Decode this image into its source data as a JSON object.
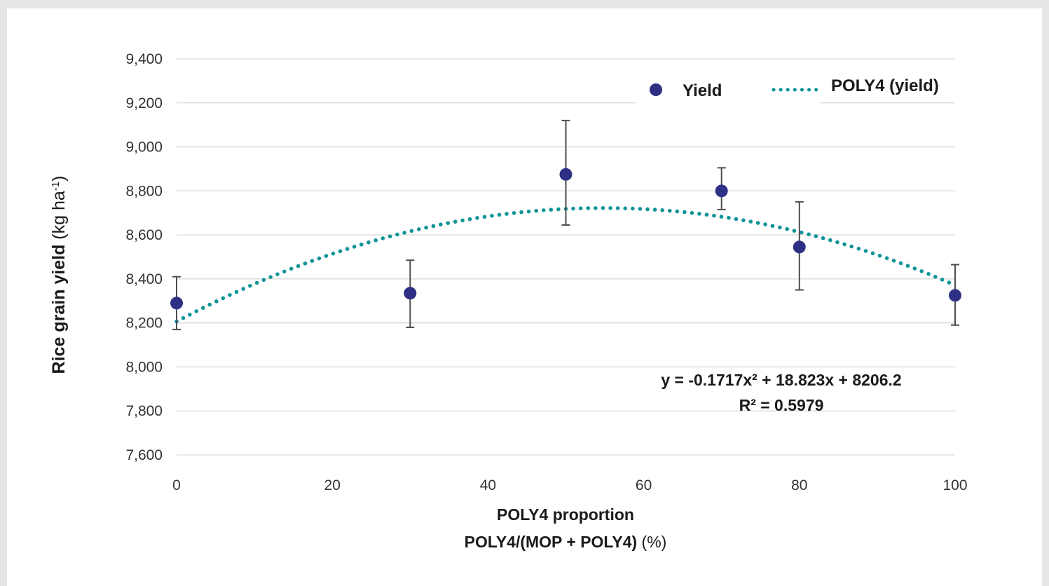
{
  "chart_data": {
    "type": "scatter",
    "xlim": [
      0,
      100
    ],
    "ylim": [
      7600,
      9400
    ],
    "x_ticks": [
      0,
      20,
      40,
      60,
      80,
      100
    ],
    "y_ticks": [
      7600,
      7800,
      8000,
      8200,
      8400,
      8600,
      8800,
      9000,
      9200,
      9400
    ],
    "y_tick_labels": [
      "7,600",
      "7,800",
      "8,000",
      "8,200",
      "8,400",
      "8,600",
      "8,800",
      "9,000",
      "9,200",
      "9,400"
    ],
    "x_tick_labels": [
      "0",
      "20",
      "40",
      "60",
      "80",
      "100"
    ],
    "grid": "horizontal",
    "legend_position": "top-right",
    "ylabel": {
      "main": "Rice grain yield",
      "unit_prefix": "(kg ha",
      "unit_sup": "-1",
      "unit_suffix": ")"
    },
    "xlabel": {
      "line1": "POLY4 proportion",
      "line2_bold": "POLY4/(MOP + POLY4)",
      "line2_unit": "(%)"
    },
    "series": [
      {
        "name": "Yield",
        "type": "scatter",
        "color": "#2e3085",
        "points": [
          {
            "x": 0,
            "y": 8290,
            "err_low": 8170,
            "err_high": 8410
          },
          {
            "x": 30,
            "y": 8335,
            "err_low": 8180,
            "err_high": 8485
          },
          {
            "x": 50,
            "y": 8875,
            "err_low": 8645,
            "err_high": 9120
          },
          {
            "x": 70,
            "y": 8800,
            "err_low": 8715,
            "err_high": 8905
          },
          {
            "x": 80,
            "y": 8545,
            "err_low": 8350,
            "err_high": 8750
          },
          {
            "x": 100,
            "y": 8325,
            "err_low": 8190,
            "err_high": 8465
          }
        ]
      },
      {
        "name": "POLY4 (yield)",
        "type": "trendline-polynomial",
        "color": "#0e9398",
        "coefficients": {
          "a": -0.1717,
          "b": 18.823,
          "c": 8206.2
        }
      }
    ],
    "annotation": {
      "equation": "y = -0.1717x² + 18.823x + 8206.2",
      "r_squared": "R² = 0.5979"
    }
  }
}
